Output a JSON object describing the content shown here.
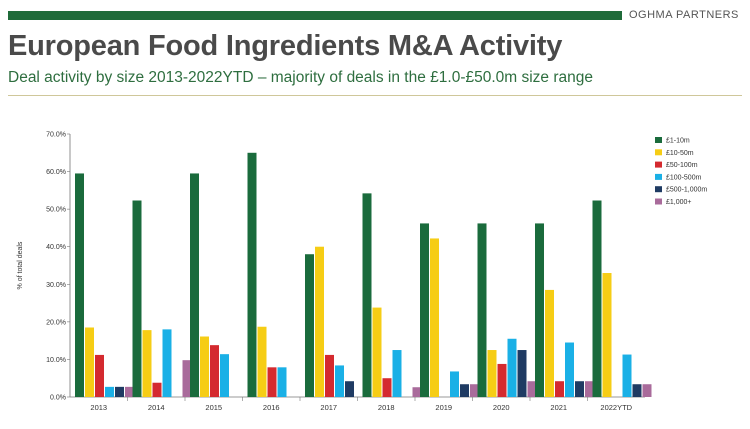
{
  "header": {
    "brand": "OGHMA PARTNERS",
    "title": "European Food Ingredients M&A Activity",
    "subtitle": "Deal activity by size 2013-2022YTD – majority of deals in the £1.0-£50.0m size range"
  },
  "colors": {
    "brand_green": "#1f6b3a",
    "title_grey": "#4a4a4a",
    "subtitle_green": "#2e6e3f"
  },
  "chart_data": {
    "type": "bar",
    "title": "",
    "xlabel": "",
    "ylabel": "% of total deals",
    "ylim": [
      0,
      70
    ],
    "yticks": [
      "0.0%",
      "10.0%",
      "20.0%",
      "30.0%",
      "40.0%",
      "50.0%",
      "60.0%",
      "70.0%"
    ],
    "grid": false,
    "legend_position": "right",
    "categories": [
      "2013",
      "2014",
      "2015",
      "2016",
      "2017",
      "2018",
      "2019",
      "2020",
      "2021",
      "2022YTD"
    ],
    "series": [
      {
        "name": "£1-10m",
        "color": "#1a6b3c",
        "values": [
          59.5,
          52.3,
          59.5,
          65.0,
          38.0,
          54.2,
          46.2,
          46.2,
          46.2,
          52.3
        ]
      },
      {
        "name": "£10-50m",
        "color": "#f6cd15",
        "values": [
          18.5,
          17.8,
          16.1,
          18.7,
          40.0,
          23.8,
          42.2,
          12.5,
          28.5,
          33.0
        ]
      },
      {
        "name": "£50-100m",
        "color": "#d42a2f",
        "values": [
          11.2,
          3.8,
          13.8,
          7.9,
          11.2,
          5.0,
          0,
          8.8,
          4.2,
          0
        ]
      },
      {
        "name": "£100-500m",
        "color": "#1ab0e6",
        "values": [
          2.7,
          18.0,
          11.4,
          7.9,
          8.4,
          12.5,
          6.8,
          15.5,
          14.5,
          11.3
        ]
      },
      {
        "name": "£500-1,000m",
        "color": "#1f3b63",
        "values": [
          2.7,
          0,
          0,
          0,
          4.2,
          0,
          3.4,
          12.5,
          4.2,
          3.4
        ]
      },
      {
        "name": "£1,000+",
        "color": "#a96b9b",
        "values": [
          2.7,
          9.8,
          0,
          0,
          0,
          2.6,
          3.4,
          4.2,
          4.2,
          3.4
        ]
      }
    ]
  }
}
